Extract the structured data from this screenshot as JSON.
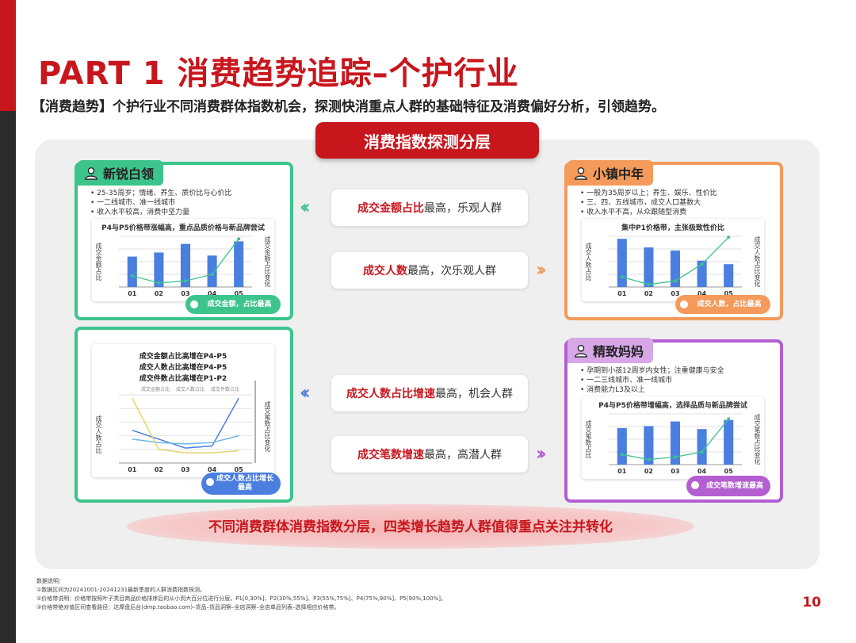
{
  "page": {
    "title": "PART 1  消费趋势追踪–个护行业",
    "subtitle": "【消费趋势】个护行业不同消费群体指数机会，探测快消重点人群的基础特征及消费偏好分析，引领趋势。",
    "panel_title": "消费指数探测分层",
    "bottom_banner": "不同消费群体消费指数分层，四类增长趋势人群值得重点关注并转化",
    "page_number": "10"
  },
  "colors": {
    "red": "#c8161d",
    "green": "#3cc48c",
    "orange": "#f49a5a",
    "purple": "#b35ed1",
    "blue": "#4a7fe0"
  },
  "insights": [
    {
      "bold": "成交金额占比",
      "rest": "最高，乐观人群",
      "arrow": "left"
    },
    {
      "bold": "成交人数",
      "rest": "最高，次乐观人群",
      "arrow": "right"
    },
    {
      "bold": "成交人数占比增速",
      "rest": "最高，机会人群",
      "arrow": "left"
    },
    {
      "bold": "成交笔数增速",
      "rest": "最高，高潜人群",
      "arrow": "right"
    }
  ],
  "cards": {
    "xinrui": {
      "name": "新锐白领",
      "icon": "person-icon",
      "bullets": [
        "25-35周岁；情绪、养生、质价比与心价比",
        "一二线城市、准一线城市",
        "收入水平较高，消费中坚力量"
      ],
      "chart_title": "P4与P5价格带涨幅高，重点品质价格与新品牌尝试",
      "left_axis": "成交金额占比",
      "right_axis": "成交金额占比变化",
      "pill": "成交金额，占比最高"
    },
    "xiaozhen": {
      "name": "小镇中年",
      "icon": "person-icon",
      "bullets": [
        "一般为35周岁以上；养生、娱乐、性价比",
        "三、四、五线城市，成交人口基数大",
        "收入水平不高，从众跟随型消费"
      ],
      "chart_title": "集中P1价格带，主张极致性价比",
      "left_axis": "成交人数占比",
      "right_axis": "成交人数占比变化",
      "pill": "成交人数，占比最高"
    },
    "multi": {
      "lines": [
        "成交金额占比高增在P4-P5",
        "成交人数占比高增在P4-P5",
        "成交件数占比高增在P1-P2"
      ],
      "legend": [
        "成交金额占比",
        "成交人数占比",
        "成交件数占比"
      ],
      "left_axis": "成交人数占比",
      "right_axis": "成交笔数占比变化",
      "pill": "成交人数占比增长最高"
    },
    "jingzhi": {
      "name": "精致妈妈",
      "icon": "person-icon",
      "bullets": [
        "孕期到小孩12周岁内女性；注重健康与安全",
        "一二三线城市、准一线城市",
        "消费能力L3及以上"
      ],
      "chart_title": "P4与P5价格带增幅高，选择品质与新品牌尝试",
      "left_axis": "成交笔数占比",
      "right_axis": "成交笔数占比变化",
      "pill": "成交笔数增速最高"
    }
  },
  "chart_data": [
    {
      "type": "bar",
      "name": "xinrui",
      "categories": [
        "01",
        "02",
        "03",
        "04",
        "05"
      ],
      "values": [
        0.6,
        0.68,
        0.85,
        0.62,
        0.9
      ],
      "line": [
        0.22,
        0.08,
        0.12,
        0.25,
        0.95
      ]
    },
    {
      "type": "bar",
      "name": "xiaozhen",
      "categories": [
        "01",
        "02",
        "03",
        "04",
        "05"
      ],
      "values": [
        0.95,
        0.78,
        0.72,
        0.52,
        0.45
      ],
      "line": [
        0.2,
        0.05,
        0.12,
        0.45,
        0.98
      ]
    },
    {
      "type": "line",
      "name": "multi",
      "categories": [
        "01",
        "02",
        "03",
        "04",
        "05"
      ],
      "series": [
        {
          "values": [
            0.48,
            0.35,
            0.22,
            0.25,
            0.95
          ]
        },
        {
          "values": [
            0.35,
            0.3,
            0.28,
            0.3,
            0.4
          ]
        },
        {
          "values": [
            0.95,
            0.2,
            0.15,
            0.15,
            0.18
          ]
        }
      ]
    },
    {
      "type": "bar",
      "name": "jingzhi",
      "categories": [
        "01",
        "02",
        "03",
        "04",
        "05"
      ],
      "values": [
        0.72,
        0.76,
        0.85,
        0.7,
        0.88
      ],
      "line": [
        0.2,
        0.1,
        0.15,
        0.25,
        0.9
      ]
    }
  ],
  "notes": [
    "数据说明：",
    "①数据区间为20241001-20241231最新季度的人群消费指数探测。",
    "②价格带说明：价格带按照叶子类目商品价格排序后的从小到大百分位进行分层，P1[0,30%]、P2(30%,55%]、P3(55%,75%]、P4(75%,90%]、P5(90%,100%]。",
    "③价格带绝对值区间查看路径：达摩盘后台(dmp.taobao.com)–货品–货品洞察–全店洞察–全店单品列表–选择相应价格带。"
  ]
}
